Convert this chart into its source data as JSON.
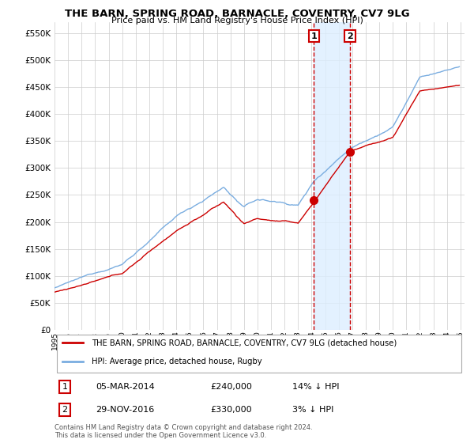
{
  "title": "THE BARN, SPRING ROAD, BARNACLE, COVENTRY, CV7 9LG",
  "subtitle": "Price paid vs. HM Land Registry's House Price Index (HPI)",
  "legend_label_red": "THE BARN, SPRING ROAD, BARNACLE, COVENTRY, CV7 9LG (detached house)",
  "legend_label_blue": "HPI: Average price, detached house, Rugby",
  "ann1": {
    "label": "1",
    "year": 2014.17,
    "price": 240000,
    "date_str": "05-MAR-2014",
    "price_str": "£240,000",
    "hpi_str": "14% ↓ HPI"
  },
  "ann2": {
    "label": "2",
    "year": 2016.83,
    "price": 330000,
    "date_str": "29-NOV-2016",
    "price_str": "£330,000",
    "hpi_str": "3% ↓ HPI"
  },
  "ylabel_ticks": [
    0,
    50000,
    100000,
    150000,
    200000,
    250000,
    300000,
    350000,
    400000,
    450000,
    500000,
    550000
  ],
  "ylim": [
    0,
    570000
  ],
  "xlim": [
    1995.0,
    2025.3
  ],
  "footer": "Contains HM Land Registry data © Crown copyright and database right 2024.\nThis data is licensed under the Open Government Licence v3.0.",
  "red_color": "#cc0000",
  "blue_color": "#7aade0",
  "shade_color": "#ddeeff",
  "ann_line1_color": "#cc0000",
  "ann_line2_color": "#cc0000",
  "grid_color": "#cccccc",
  "bg_color": "#ffffff"
}
